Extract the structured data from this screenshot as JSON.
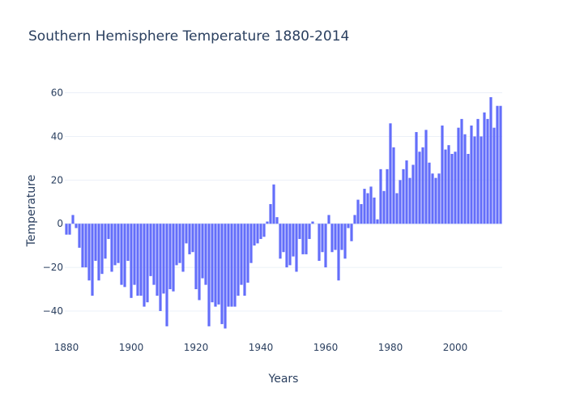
{
  "chart_data": {
    "type": "bar",
    "title": "Southern Hemisphere Temperature 1880-2014",
    "xlabel": "Years",
    "ylabel": "Temperature",
    "xlim": [
      1879.5,
      2014.5
    ],
    "ylim": [
      -53,
      68
    ],
    "x_ticks": [
      1880,
      1900,
      1920,
      1940,
      1960,
      1980,
      2000
    ],
    "y_ticks": [
      -40,
      -20,
      0,
      20,
      40,
      60
    ],
    "bar_color": "#636efa",
    "grid": true,
    "x_start": 1880,
    "values": [
      -5,
      -5,
      4,
      -2,
      -11,
      -20,
      -20,
      -26,
      -33,
      -17,
      -26,
      -23,
      -16,
      -7,
      -22,
      -19,
      -18,
      -28,
      -29,
      -17,
      -34,
      -28,
      -33,
      -33,
      -38,
      -36,
      -24,
      -28,
      -33,
      -40,
      -32,
      -47,
      -30,
      -31,
      -19,
      -18,
      -22,
      -9,
      -14,
      -13,
      -30,
      -35,
      -25,
      -28,
      -47,
      -36,
      -38,
      -37,
      -46,
      -48,
      -38,
      -38,
      -38,
      -33,
      -28,
      -33,
      -27,
      -18,
      -10,
      -9,
      -7,
      -6,
      1,
      9,
      18,
      3,
      -16,
      -13,
      -20,
      -19,
      -15,
      -22,
      -7,
      -14,
      -14,
      -7,
      1,
      0,
      -17,
      -13,
      -20,
      4,
      -13,
      -12,
      -26,
      -12,
      -16,
      -2,
      -8,
      4,
      11,
      9,
      16,
      14,
      17,
      12,
      2,
      25,
      15,
      25,
      46,
      35,
      14,
      20,
      25,
      29,
      21,
      27,
      42,
      33,
      35,
      43,
      28,
      23,
      21,
      23,
      45,
      34,
      36,
      32,
      33,
      44,
      48,
      41,
      32,
      45,
      40,
      48,
      40,
      51,
      48,
      58,
      44,
      54,
      54
    ]
  }
}
